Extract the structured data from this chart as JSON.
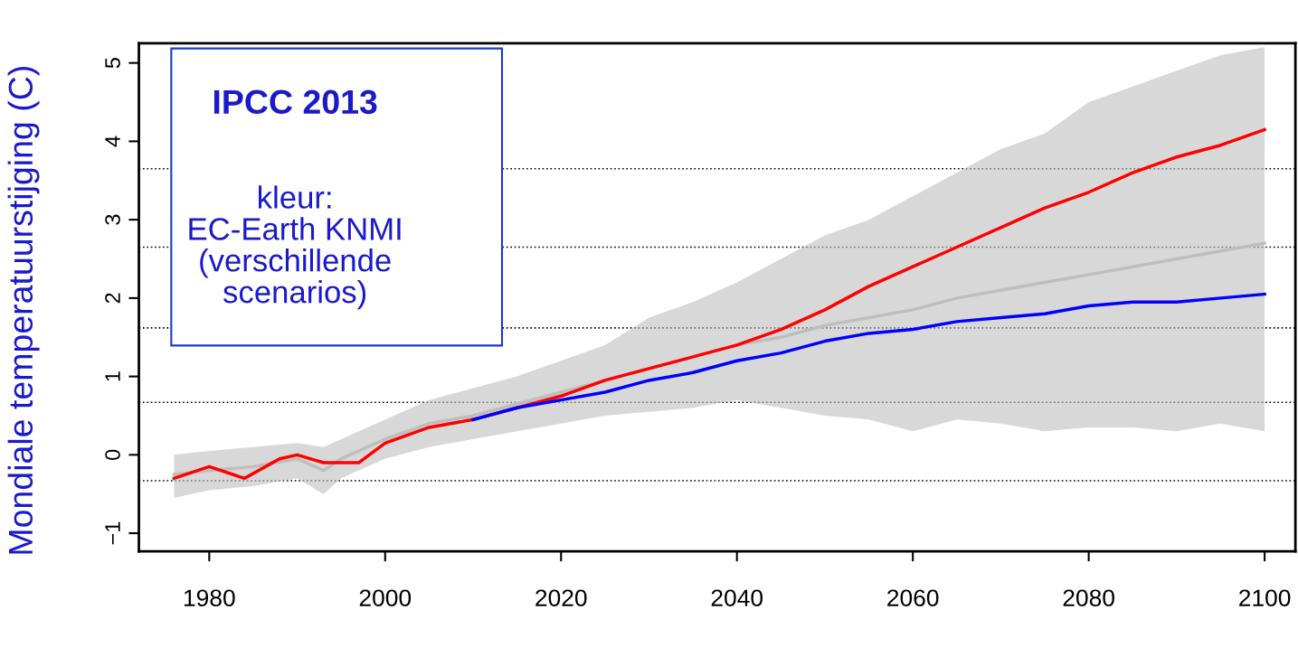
{
  "chart_data": {
    "type": "line",
    "title": "IPCC 2013",
    "ylabel": "Mondiale temperatuurstijging (C)",
    "annotations": [
      "kleur:\nEC-Earth KNMI\n(verschillende\nscenarios)"
    ],
    "xlim": [
      1972,
      2103.5
    ],
    "xticks": [
      1980,
      2000,
      2020,
      2040,
      2060,
      2080,
      2100
    ],
    "ylim": [
      -1.23,
      5.25
    ],
    "yticks": [
      {
        "value": -1,
        "label": "−1"
      },
      0,
      1,
      2,
      3,
      4,
      5
    ],
    "grid": false,
    "legend": false,
    "line_style": "solid",
    "marker": "none",
    "ref_lines": [
      {
        "axis": "y",
        "value": 3.65,
        "color": "#000000",
        "line_style": "dotted"
      },
      {
        "axis": "y",
        "value": 2.65,
        "color": "#000000",
        "line_style": "dotted"
      },
      {
        "axis": "y",
        "value": 1.62,
        "color": "#000000",
        "line_style": "dotted"
      },
      {
        "axis": "y",
        "value": 0.67,
        "color": "#000000",
        "line_style": "dotted"
      },
      {
        "axis": "y",
        "value": -0.33,
        "color": "#000000",
        "line_style": "dotted"
      }
    ],
    "series": [
      {
        "color": "#bebebe",
        "x": [
          1976,
          1980,
          1985,
          1990,
          1993,
          1995,
          2000,
          2005,
          2010,
          2015,
          2020,
          2025,
          2030,
          2035,
          2040,
          2045,
          2050,
          2055,
          2060,
          2065,
          2070,
          2075,
          2080,
          2085,
          2090,
          2095,
          2100
        ],
        "values": [
          -0.25,
          -0.2,
          -0.15,
          -0.05,
          -0.2,
          -0.05,
          0.2,
          0.4,
          0.5,
          0.65,
          0.8,
          0.95,
          1.1,
          1.25,
          1.4,
          1.5,
          1.65,
          1.75,
          1.85,
          2.0,
          2.1,
          2.2,
          2.3,
          2.4,
          2.5,
          2.6,
          2.7
        ],
        "lower": [
          -0.55,
          -0.45,
          -0.4,
          -0.3,
          -0.5,
          -0.3,
          -0.05,
          0.1,
          0.2,
          0.3,
          0.4,
          0.5,
          0.55,
          0.6,
          0.7,
          0.6,
          0.5,
          0.45,
          0.3,
          0.45,
          0.4,
          0.3,
          0.35,
          0.35,
          0.3,
          0.4,
          0.3
        ],
        "upper": [
          0.0,
          0.05,
          0.1,
          0.15,
          0.1,
          0.2,
          0.45,
          0.7,
          0.85,
          1.0,
          1.2,
          1.4,
          1.75,
          1.95,
          2.2,
          2.5,
          2.8,
          3.0,
          3.3,
          3.6,
          3.9,
          4.1,
          4.5,
          4.7,
          4.9,
          5.1,
          5.2
        ]
      },
      {
        "color": "#ff0000",
        "x": [
          1976,
          1980,
          1984,
          1988,
          1990,
          1993,
          1997,
          2000,
          2005,
          2010,
          2015,
          2020,
          2025,
          2030,
          2035,
          2040,
          2045,
          2050,
          2055,
          2060,
          2065,
          2070,
          2075,
          2080,
          2085,
          2090,
          2095,
          2100
        ],
        "values": [
          -0.3,
          -0.15,
          -0.3,
          -0.05,
          0.0,
          -0.1,
          -0.1,
          0.15,
          0.35,
          0.45,
          0.6,
          0.75,
          0.95,
          1.1,
          1.25,
          1.4,
          1.6,
          1.85,
          2.15,
          2.4,
          2.65,
          2.9,
          3.15,
          3.35,
          3.6,
          3.8,
          3.95,
          4.15
        ]
      },
      {
        "color": "#0000ff",
        "x": [
          2010,
          2015,
          2020,
          2025,
          2030,
          2035,
          2040,
          2045,
          2050,
          2055,
          2060,
          2065,
          2070,
          2075,
          2080,
          2085,
          2090,
          2095,
          2100
        ],
        "values": [
          0.45,
          0.6,
          0.7,
          0.8,
          0.95,
          1.05,
          1.2,
          1.3,
          1.45,
          1.55,
          1.6,
          1.7,
          1.75,
          1.8,
          1.9,
          1.95,
          1.95,
          2.0,
          2.05
        ]
      }
    ]
  }
}
